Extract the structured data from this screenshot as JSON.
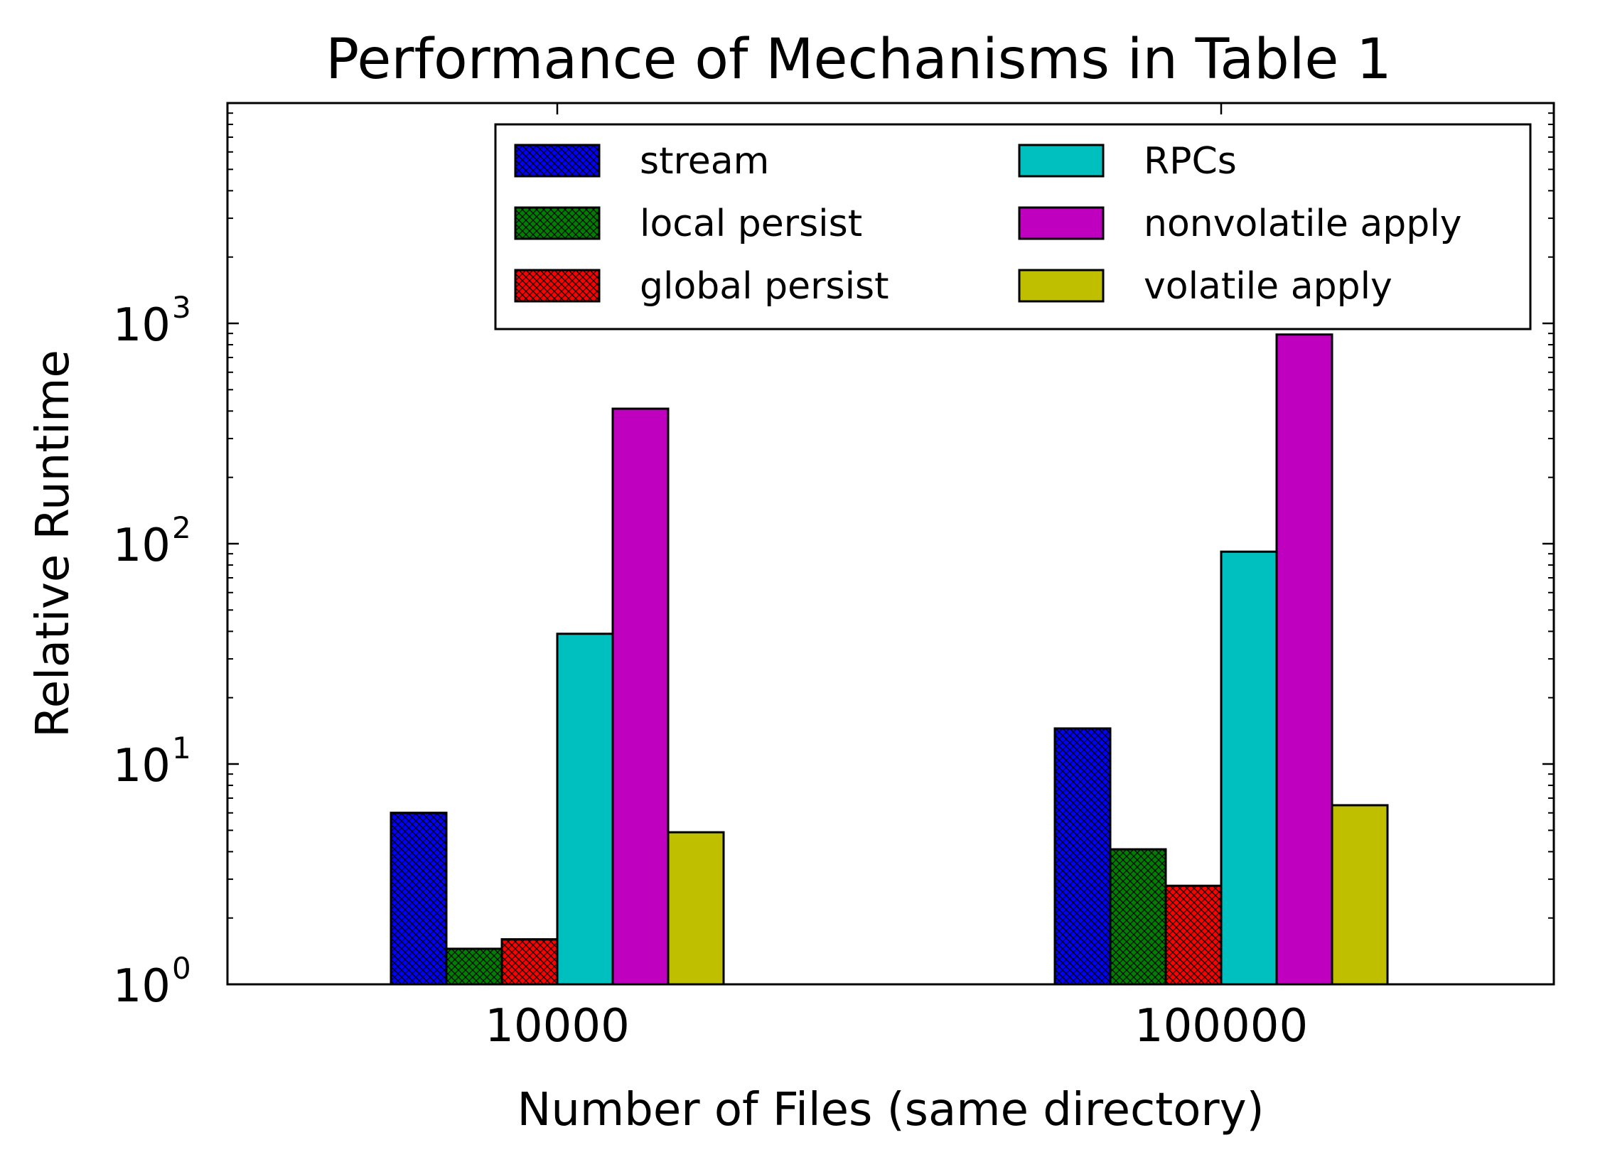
{
  "chart_data": {
    "type": "bar",
    "title": "Performance of Mechanisms in Table 1",
    "xlabel": "Number of Files (same directory)",
    "ylabel": "Relative Runtime",
    "yscale": "log",
    "ylim": [
      1,
      10000
    ],
    "yticks": [
      {
        "value": 1,
        "label": "10",
        "exp": "0"
      },
      {
        "value": 10,
        "label": "10",
        "exp": "1"
      },
      {
        "value": 100,
        "label": "10",
        "exp": "2"
      },
      {
        "value": 1000,
        "label": "10",
        "exp": "3"
      }
    ],
    "categories": [
      "10000",
      "100000"
    ],
    "series": [
      {
        "name": "stream",
        "color": "#0000ff",
        "hatch": true,
        "values": [
          6.0,
          14.5
        ]
      },
      {
        "name": "local persist",
        "color": "#008000",
        "hatch": true,
        "values": [
          1.45,
          4.1
        ]
      },
      {
        "name": "global persist",
        "color": "#ff0000",
        "hatch": true,
        "values": [
          1.6,
          2.8
        ]
      },
      {
        "name": "RPCs",
        "color": "#00bfbf",
        "hatch": false,
        "values": [
          39,
          92
        ]
      },
      {
        "name": "nonvolatile apply",
        "color": "#bf00bf",
        "hatch": false,
        "values": [
          410,
          890
        ]
      },
      {
        "name": "volatile apply",
        "color": "#bfbf00",
        "hatch": false,
        "values": [
          4.9,
          6.5
        ]
      }
    ],
    "legend": {
      "position": "top-right",
      "columns": 2
    },
    "grid": false
  }
}
